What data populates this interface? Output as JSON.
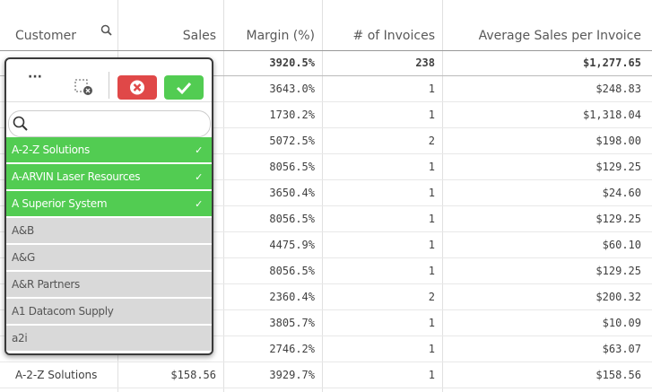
{
  "table": {
    "headers": [
      "Customer",
      "Sales",
      "Margin (%)",
      "# of Invoices",
      "Average Sales per Invoice"
    ],
    "totals": {
      "margin": "3920.5%",
      "invoices": "238",
      "avg": "$1,277.65"
    },
    "rows": [
      {
        "margin": "3643.0%",
        "invoices": "1",
        "avg": "$248.83"
      },
      {
        "margin": "1730.2%",
        "invoices": "1",
        "avg": "$1,318.04"
      },
      {
        "margin": "5072.5%",
        "invoices": "2",
        "avg": "$198.00"
      },
      {
        "margin": "8056.5%",
        "invoices": "1",
        "avg": "$129.25"
      },
      {
        "margin": "3650.4%",
        "invoices": "1",
        "avg": "$24.60"
      },
      {
        "margin": "8056.5%",
        "invoices": "1",
        "avg": "$129.25"
      },
      {
        "margin": "4475.9%",
        "invoices": "1",
        "avg": "$60.10"
      },
      {
        "margin": "8056.5%",
        "invoices": "1",
        "avg": "$129.25"
      },
      {
        "margin": "2360.4%",
        "invoices": "2",
        "avg": "$200.32"
      },
      {
        "margin": "3805.7%",
        "invoices": "1",
        "avg": "$10.09"
      },
      {
        "margin": "2746.2%",
        "invoices": "1",
        "avg": "$63.07"
      },
      {
        "customer": "A-2-Z Solutions",
        "sales": "$158.56",
        "margin": "3929.7%",
        "invoices": "1",
        "avg": "$158.56"
      }
    ]
  },
  "popover": {
    "items": [
      {
        "label": "A-2-Z Solutions",
        "selected": true
      },
      {
        "label": "A-ARVIN Laser Resources",
        "selected": true
      },
      {
        "label": "A Superior System",
        "selected": true
      },
      {
        "label": "A&B",
        "selected": false
      },
      {
        "label": "A&G",
        "selected": false
      },
      {
        "label": "A&R Partners",
        "selected": false
      },
      {
        "label": "A1 Datacom Supply",
        "selected": false
      },
      {
        "label": "a2i",
        "selected": false
      }
    ]
  }
}
